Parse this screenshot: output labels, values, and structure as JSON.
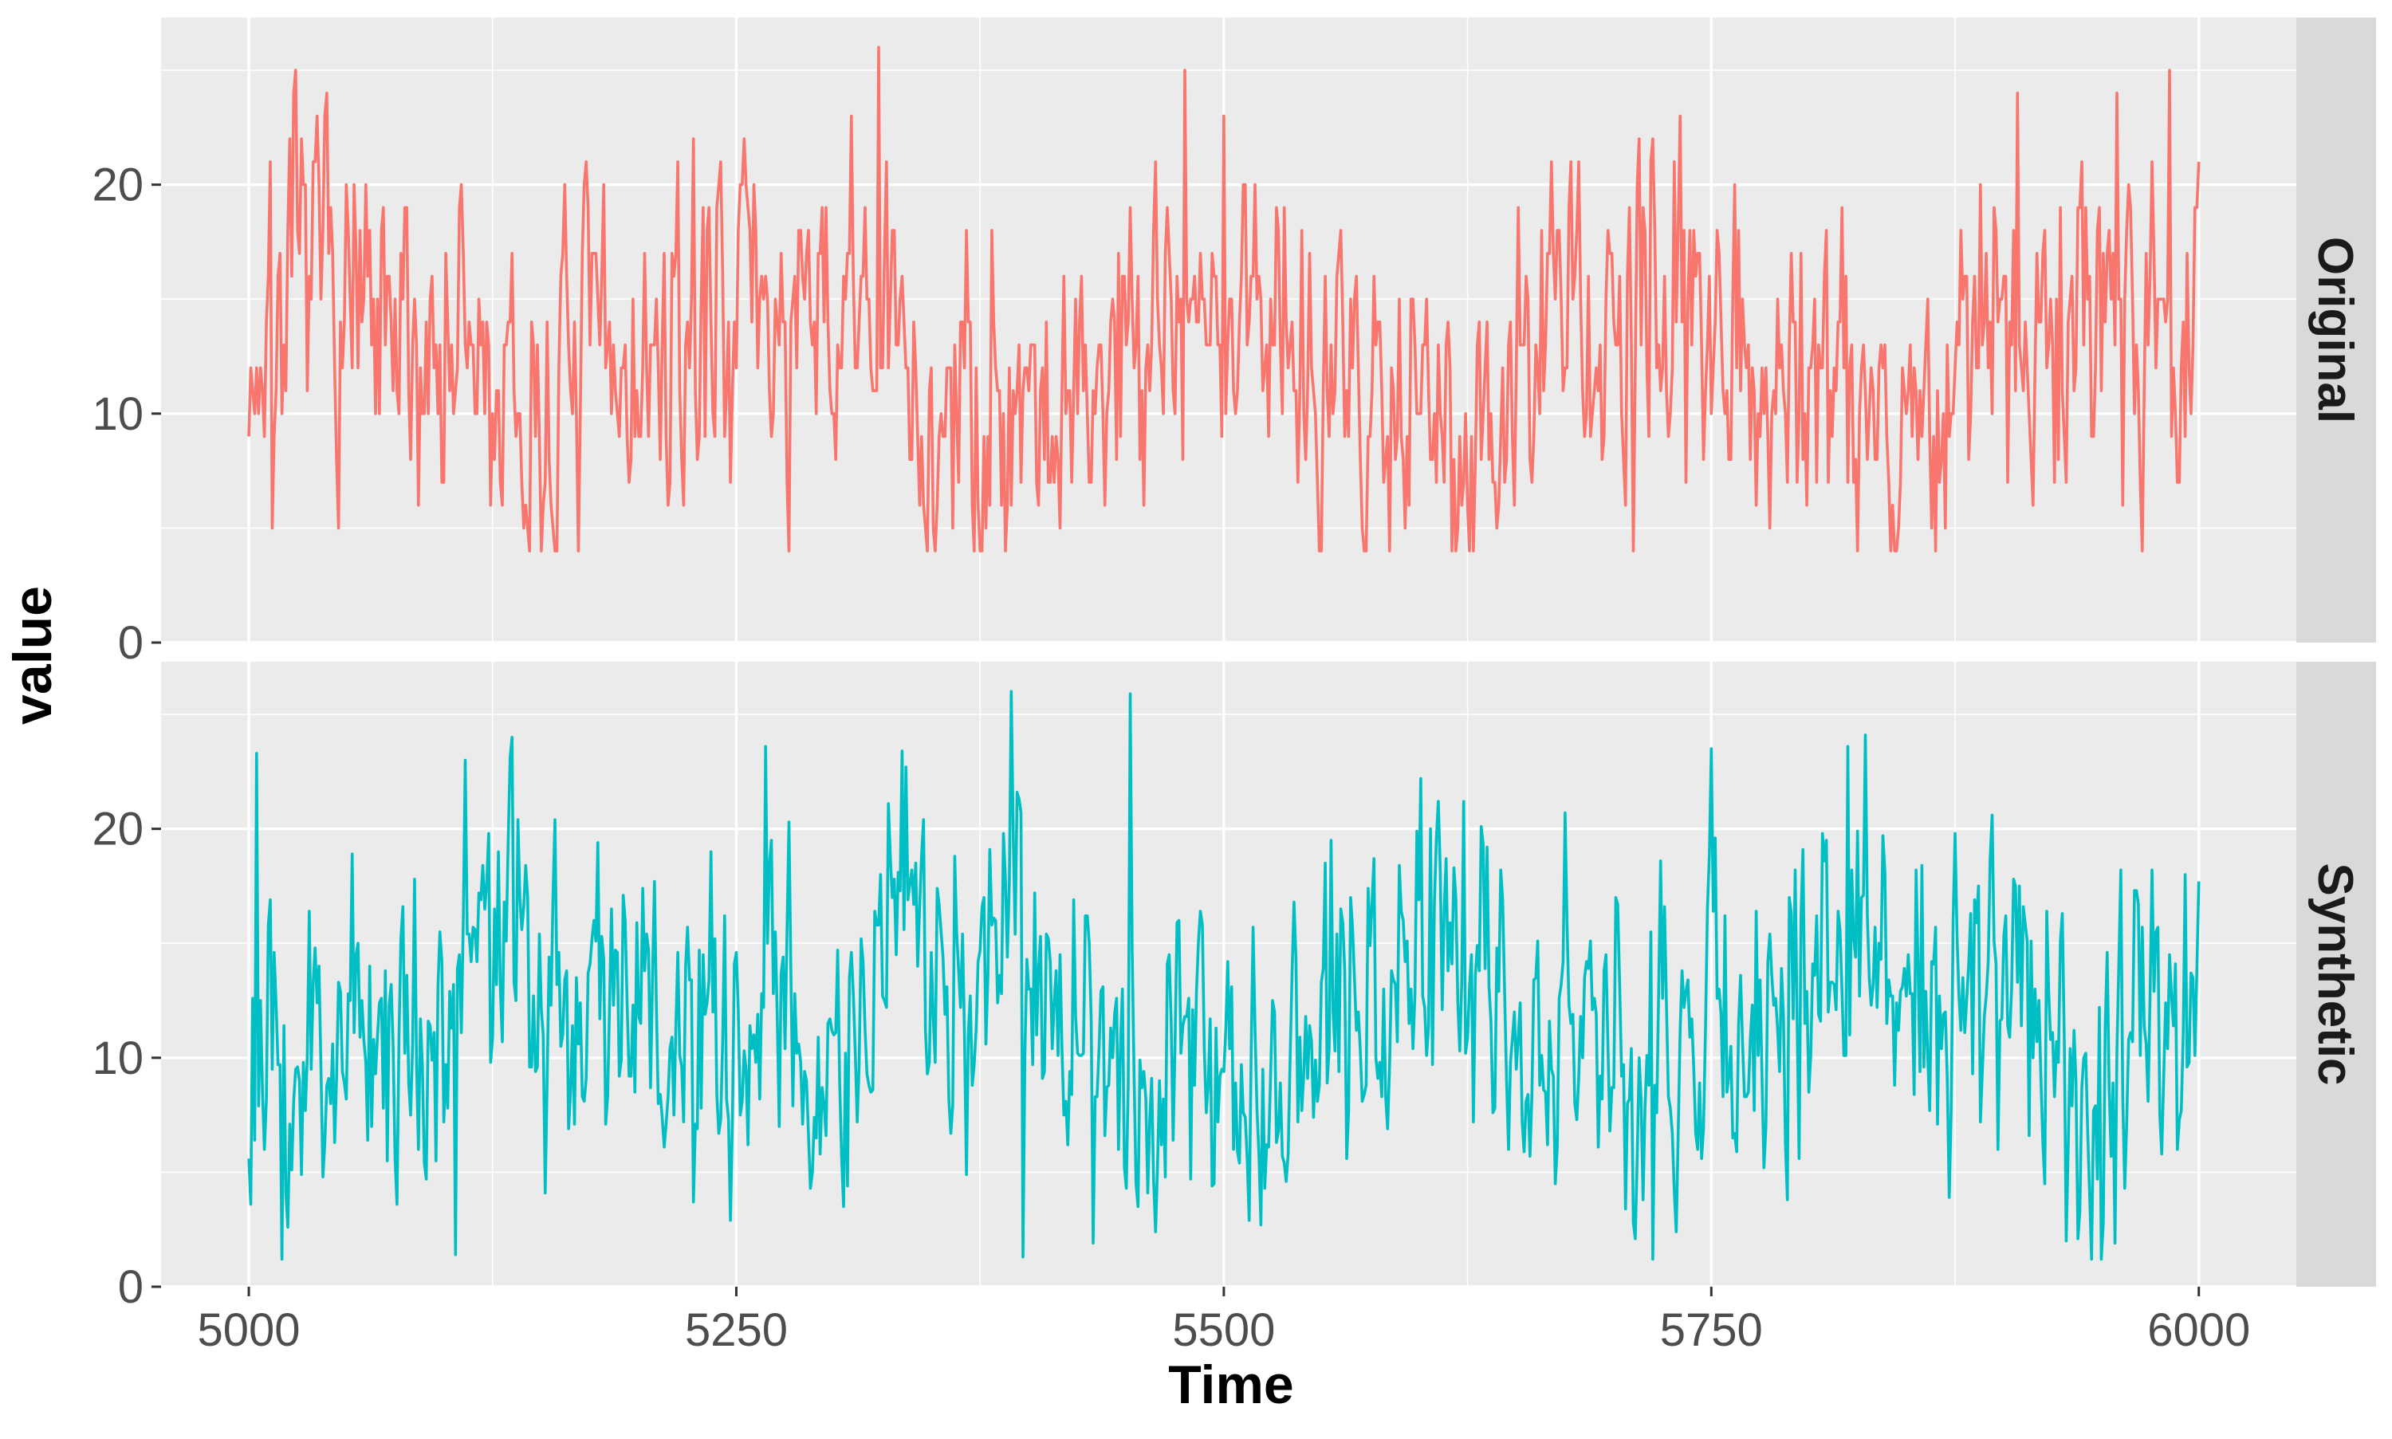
{
  "chart_data": {
    "type": "line",
    "xlabel": "Time",
    "ylabel": "value",
    "xlim": [
      4955,
      6050
    ],
    "ylim": [
      0,
      27.3
    ],
    "x_ticks": [
      5000,
      5250,
      5500,
      5750,
      6000
    ],
    "x_tick_labels": [
      "5000",
      "5250",
      "5500",
      "5750",
      "6000"
    ],
    "y_ticks": [
      0,
      10,
      20
    ],
    "y_tick_labels": [
      "0",
      "10",
      "20"
    ],
    "grid": true,
    "x_range": [
      5000,
      6000
    ],
    "panels": [
      {
        "strip_label": "Original",
        "color": "#F8766D",
        "seed": 7,
        "mean": 12.5,
        "min": 4,
        "max": 26,
        "integer_values": true,
        "peaks": [
          {
            "x": 5323,
            "y": 26
          },
          {
            "x": 5372,
            "y": 4
          },
          {
            "x": 5480,
            "y": 25
          },
          {
            "x": 5500,
            "y": 23
          },
          {
            "x": 5550,
            "y": 4
          },
          {
            "x": 5710,
            "y": 4
          },
          {
            "x": 5907,
            "y": 24
          },
          {
            "x": 5958,
            "y": 24
          },
          {
            "x": 5985,
            "y": 25
          },
          {
            "x": 5012,
            "y": 5
          }
        ]
      },
      {
        "strip_label": "Synthetic",
        "color": "#00BFC4",
        "seed": 23,
        "mean": 12.0,
        "min": 1.2,
        "max": 26.0,
        "integer_values": false,
        "peaks": [
          {
            "x": 5391,
            "y": 26.0
          },
          {
            "x": 5452,
            "y": 25.9
          },
          {
            "x": 5397,
            "y": 1.3
          },
          {
            "x": 5017,
            "y": 1.2
          },
          {
            "x": 5106,
            "y": 1.4
          },
          {
            "x": 5957,
            "y": 1.9
          },
          {
            "x": 5004,
            "y": 23.3
          },
          {
            "x": 5750,
            "y": 23.5
          },
          {
            "x": 5820,
            "y": 23.6
          },
          {
            "x": 5265,
            "y": 23.6
          }
        ]
      }
    ]
  }
}
